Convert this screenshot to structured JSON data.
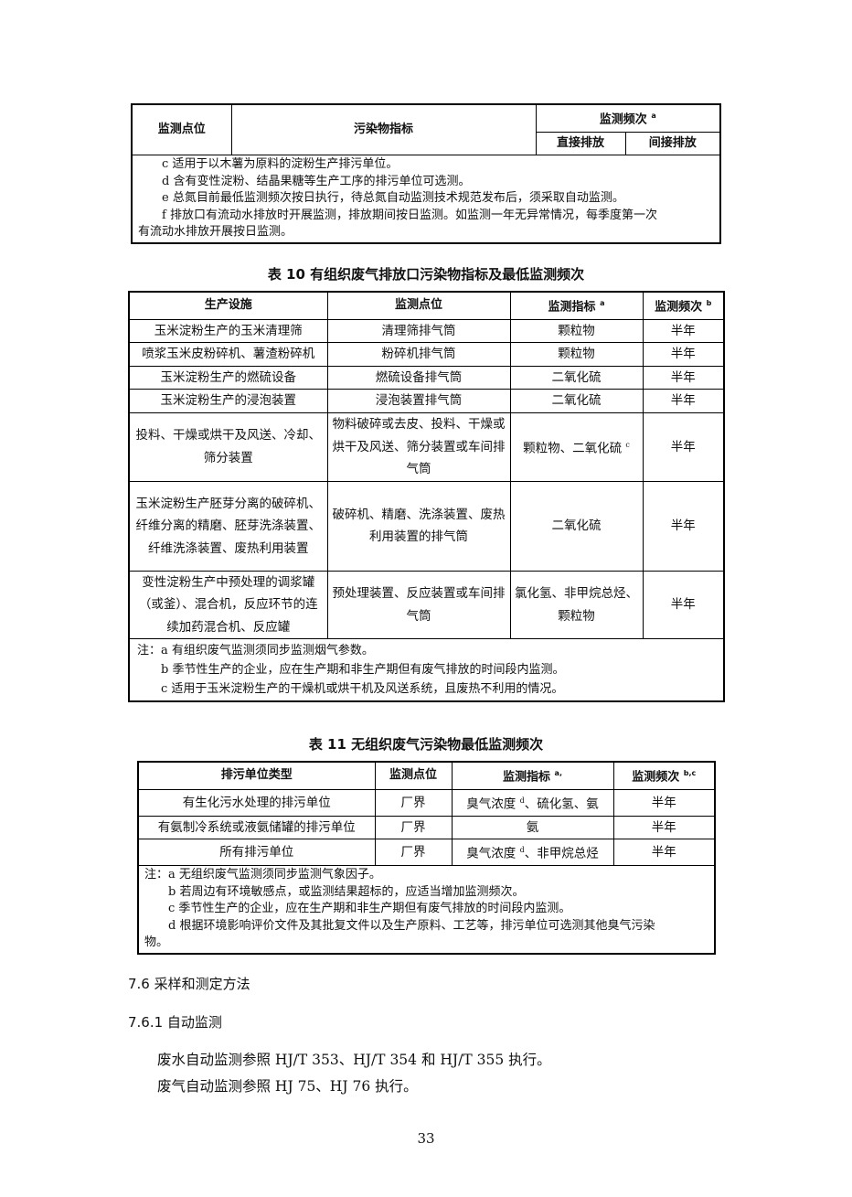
{
  "table_prev": {
    "headers": {
      "point": "监测点位",
      "pollutant": "污染物指标",
      "freq": "监测频次",
      "freq_sup": "a",
      "direct": "直接排放",
      "indirect": "间接排放"
    },
    "notes": [
      "c 适用于以木薯为原料的淀粉生产排污单位。",
      "d 含有变性淀粉、结晶果糖等生产工序的排污单位可选测。",
      "e 总氮目前最低监测频次按日执行，待总氮自动监测技术规范发布后，须采取自动监测。",
      "f 排放口有流动水排放时开展监测，排放期间按日监测。如监测一年无异常情况，每季度第一次",
      "有流动水排放开展按日监测。"
    ]
  },
  "table10": {
    "title": "表 10  有组织废气排放口污染物指标及最低监测频次",
    "headers": [
      "生产设施",
      "监测点位",
      "监测指标",
      "监测频次"
    ],
    "header_sups": [
      "",
      "",
      "a",
      "b"
    ],
    "rows": [
      {
        "facility": "玉米淀粉生产的玉米清理筛",
        "point": "清理筛排气筒",
        "indicator": "颗粒物",
        "sup": "",
        "freq": "半年"
      },
      {
        "facility": "喷浆玉米皮粉碎机、薯渣粉碎机",
        "point": "粉碎机排气筒",
        "indicator": "颗粒物",
        "sup": "",
        "freq": "半年"
      },
      {
        "facility": "玉米淀粉生产的燃硫设备",
        "point": "燃硫设备排气筒",
        "indicator": "二氧化硫",
        "sup": "",
        "freq": "半年"
      },
      {
        "facility": "玉米淀粉生产的浸泡装置",
        "point": "浸泡装置排气筒",
        "indicator": "二氧化硫",
        "sup": "",
        "freq": "半年"
      },
      {
        "facility": "投料、干燥或烘干及风送、冷却、筛分装置",
        "point": "物料破碎或去皮、投料、干燥或烘干及风送、筛分装置或车间排气筒",
        "indicator": "颗粒物、二氧化硫",
        "sup": "c",
        "freq": "半年"
      },
      {
        "facility": "玉米淀粉生产胚芽分离的破碎机、纤维分离的精磨、胚芽洗涤装置、纤维洗涤装置、废热利用装置",
        "point": "破碎机、精磨、洗涤装置、废热利用装置的排气筒",
        "indicator": "二氧化硫",
        "sup": "",
        "freq": "半年"
      },
      {
        "facility": "变性淀粉生产中预处理的调浆罐（或釜）、混合机，反应环节的连续加药混合机、反应罐",
        "point": "预处理装置、反应装置或车间排气筒",
        "indicator": "氯化氢、非甲烷总烃、颗粒物",
        "sup": "",
        "freq": "半年"
      }
    ],
    "notes": [
      "注：a 有组织废气监测须同步监测烟气参数。",
      "b 季节性生产的企业，应在生产期和非生产期但有废气排放的时间段内监测。",
      "c 适用于玉米淀粉生产的干燥机或烘干机及风送系统，且废热不利用的情况。"
    ]
  },
  "table11": {
    "title": "表 11  无组织废气污染物最低监测频次",
    "headers": [
      "排污单位类型",
      "监测点位",
      "监测指标",
      "监测频次"
    ],
    "header_sups": [
      "",
      "",
      "a,",
      "b,c"
    ],
    "rows": [
      {
        "type": "有生化污水处理的排污单位",
        "point": "厂界",
        "ind_a": "臭气浓度",
        "sup": "d",
        "ind_b": "、硫化氢、氨",
        "freq": "半年"
      },
      {
        "type": "有氨制冷系统或液氨储罐的排污单位",
        "point": "厂界",
        "ind_a": "氨",
        "sup": "",
        "ind_b": "",
        "freq": "半年"
      },
      {
        "type": "所有排污单位",
        "point": "厂界",
        "ind_a": "臭气浓度",
        "sup": "d",
        "ind_b": "、非甲烷总烃",
        "freq": "半年"
      }
    ],
    "notes": [
      "注：a 无组织废气监测须同步监测气象因子。",
      "b 若周边有环境敏感点，或监测结果超标的，应适当增加监测频次。",
      "c 季节性生产的企业，应在生产期和非生产期但有废气排放的时间段内监测。",
      "d 根据环境影响评价文件及其批复文件以及生产原料、工艺等，排污单位可选测其他臭气污染",
      "物。"
    ]
  },
  "sections": {
    "s1": "7.6  采样和测定方法",
    "s2": "7.6.1  自动监测",
    "p1": "废水自动监测参照 HJ/T 353、HJ/T 354 和 HJ/T 355 执行。",
    "p2": "废气自动监测参照 HJ 75、HJ 76 执行。"
  },
  "page_number": "33"
}
